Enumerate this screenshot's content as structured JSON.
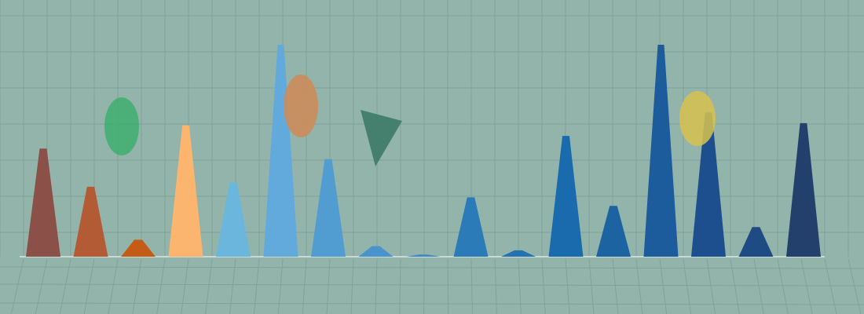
{
  "scene": {
    "background": "#93b4ab",
    "grid_color": "#7fa299",
    "baseline_color": "#c9dad5",
    "spikes": [
      {
        "name": "spike-1",
        "color": "#8b5048",
        "level": 0.51
      },
      {
        "name": "spike-2",
        "color": "#b35b35",
        "level": 0.33
      },
      {
        "name": "spike-3",
        "color": "#c45c16",
        "level": 0.08
      },
      {
        "name": "spike-4",
        "color": "#fbb56f",
        "level": 0.62
      },
      {
        "name": "spike-5",
        "color": "#6bb6dc",
        "level": 0.35
      },
      {
        "name": "spike-6",
        "color": "#62aadc",
        "level": 1.0
      },
      {
        "name": "spike-7",
        "color": "#519cd0",
        "level": 0.46
      },
      {
        "name": "spike-8",
        "color": "#4a93cc",
        "level": 0.05
      },
      {
        "name": "spike-9",
        "color": "#3f88c2",
        "level": 0.01
      },
      {
        "name": "spike-10",
        "color": "#2a7bb7",
        "level": 0.28
      },
      {
        "name": "spike-11",
        "color": "#2472b1",
        "level": 0.03
      },
      {
        "name": "spike-12",
        "color": "#196bad",
        "level": 0.57
      },
      {
        "name": "spike-13",
        "color": "#1c63a2",
        "level": 0.24
      },
      {
        "name": "spike-14",
        "color": "#1c5b9c",
        "level": 1.0
      },
      {
        "name": "spike-15",
        "color": "#1d4f8e",
        "level": 0.68
      },
      {
        "name": "spike-16",
        "color": "#1f4b85",
        "level": 0.14
      },
      {
        "name": "spike-17",
        "color": "#233f6c",
        "level": 0.63
      }
    ],
    "shapes": [
      {
        "name": "green-ellipse",
        "kind": "ellipse",
        "color": "#3daf6e"
      },
      {
        "name": "orange-ellipse",
        "kind": "ellipse",
        "color": "#d08a56"
      },
      {
        "name": "green-triangle",
        "kind": "triangle",
        "color": "#3d7a67"
      },
      {
        "name": "yellow-ellipse",
        "kind": "ellipse",
        "color": "#d7c24e"
      }
    ]
  }
}
